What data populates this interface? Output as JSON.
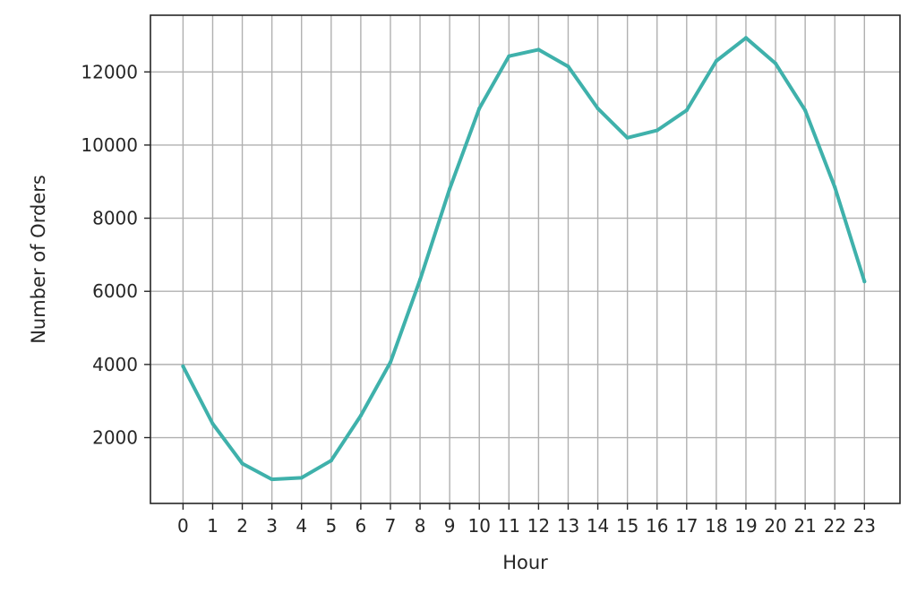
{
  "chart_data": {
    "type": "line",
    "title": "",
    "xlabel": "Hour",
    "ylabel": "Number of Orders",
    "x": [
      0,
      1,
      2,
      3,
      4,
      5,
      6,
      7,
      8,
      9,
      10,
      11,
      12,
      13,
      14,
      15,
      16,
      17,
      18,
      19,
      20,
      21,
      22,
      23
    ],
    "x_tick_labels": [
      "0",
      "1",
      "2",
      "3",
      "4",
      "5",
      "6",
      "7",
      "8",
      "9",
      "10",
      "11",
      "12",
      "13",
      "14",
      "15",
      "16",
      "17",
      "18",
      "19",
      "20",
      "21",
      "22",
      "23"
    ],
    "y_ticks": [
      2000,
      4000,
      6000,
      8000,
      10000,
      12000
    ],
    "y_tick_labels": [
      "2000",
      "4000",
      "6000",
      "8000",
      "10000",
      "12000"
    ],
    "ylim": [
      200,
      13550
    ],
    "xlim": [
      -1.1,
      24.2
    ],
    "grid": true,
    "series": [
      {
        "color": "#3fb1ab",
        "values": [
          3950,
          2380,
          1290,
          860,
          900,
          1370,
          2600,
          4060,
          6320,
          8800,
          11000,
          12430,
          12610,
          12150,
          11000,
          10200,
          10400,
          10950,
          12300,
          12930,
          12230,
          10950,
          8850,
          6270
        ]
      }
    ]
  }
}
